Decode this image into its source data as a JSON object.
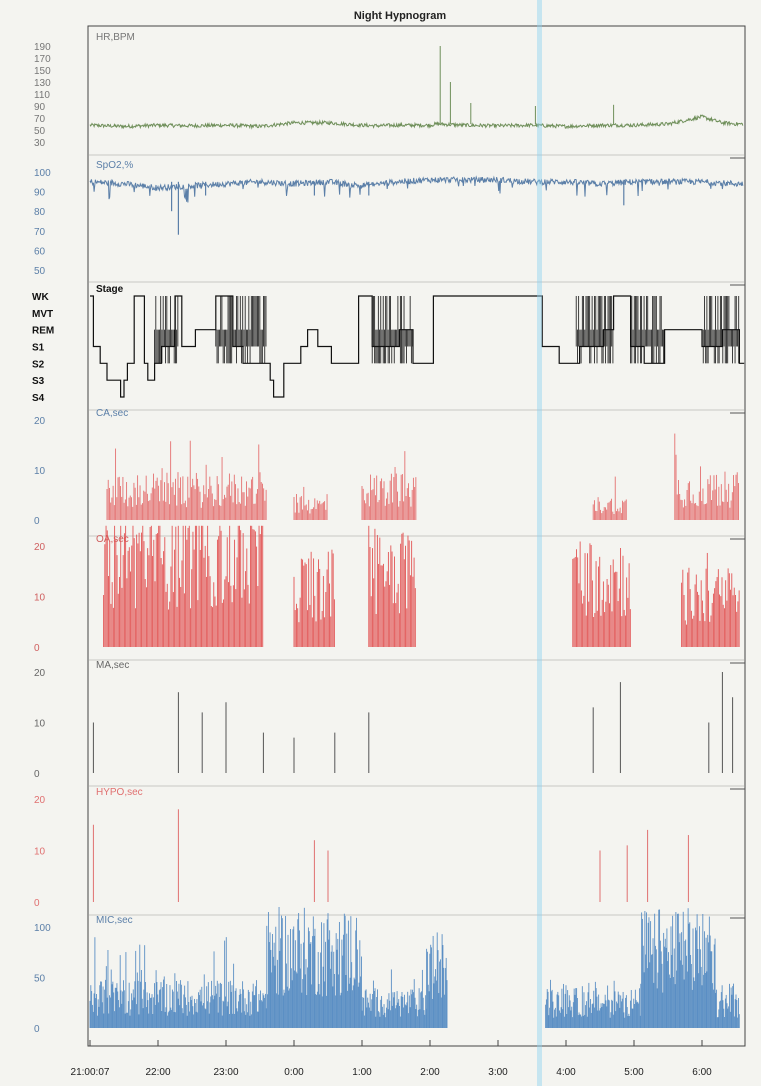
{
  "chart_data": {
    "type": "line",
    "title": "Night Hypnogram",
    "x_tick_labels": [
      "21:00:07",
      "22:00",
      "23:00",
      "0:00",
      "1:00",
      "2:00",
      "3:00",
      "4:00",
      "5:00",
      "6:00"
    ],
    "x_range": [
      "21:00:07",
      "06:35"
    ],
    "grid": false,
    "panels": [
      {
        "name": "HR,BPM",
        "kind": "line",
        "color": "#6f8f5a",
        "label_color": "#777777",
        "ylim": [
          30,
          190
        ],
        "yticks": [
          "190",
          "170",
          "150",
          "130",
          "110",
          "90",
          "70",
          "50",
          "30"
        ],
        "x": [
          0,
          0.5,
          1,
          1.5,
          2,
          2.5,
          3,
          3.5,
          4,
          4.2,
          4.5,
          5,
          5.1,
          5.5,
          6,
          6.5,
          7,
          7.5,
          8,
          8.5,
          9,
          9.3,
          9.5
        ],
        "values": [
          58,
          56,
          58,
          57,
          58,
          56,
          62,
          62,
          58,
          57,
          58,
          58,
          60,
          58,
          57,
          58,
          56,
          58,
          58,
          60,
          72,
          62,
          60
        ],
        "spikes": [
          {
            "x": 5.15,
            "value": 190
          },
          {
            "x": 5.3,
            "value": 130
          },
          {
            "x": 5.6,
            "value": 95
          },
          {
            "x": 6.55,
            "value": 90
          },
          {
            "x": 7.7,
            "value": 92
          }
        ]
      },
      {
        "name": "SpO2,%",
        "kind": "line",
        "color": "#5b7fa8",
        "label_color": "#5b7fa8",
        "ylim": [
          50,
          100
        ],
        "yticks": [
          "100",
          "90",
          "80",
          "70",
          "60",
          "50"
        ],
        "x": [
          0,
          0.5,
          1,
          1.5,
          2,
          2.5,
          3,
          3.5,
          4,
          4.5,
          5,
          5.5,
          6,
          6.5,
          7,
          7.5,
          8,
          8.5,
          9,
          9.5
        ],
        "values": [
          95,
          94,
          92,
          93,
          94,
          95,
          94,
          95,
          93,
          95,
          96,
          96,
          96,
          95,
          95,
          94,
          95,
          95,
          95,
          94
        ],
        "dips": [
          {
            "x": 1.3,
            "value": 68
          },
          {
            "x": 1.2,
            "value": 80
          },
          {
            "x": 1.7,
            "value": 88
          },
          {
            "x": 3.3,
            "value": 88
          },
          {
            "x": 4.1,
            "value": 88
          },
          {
            "x": 7.85,
            "value": 83
          }
        ]
      },
      {
        "name": "Stage",
        "kind": "step",
        "color": "#111111",
        "label_color": "#111111",
        "levels": [
          "WK",
          "MVT",
          "REM",
          "S1",
          "S2",
          "S3",
          "S4"
        ],
        "x": [
          0,
          0.05,
          0.15,
          0.25,
          0.45,
          0.5,
          0.55,
          0.65,
          0.8,
          0.85,
          0.95,
          1.05,
          1.25,
          1.35,
          1.55,
          1.85,
          2.1,
          2.25,
          2.65,
          2.7,
          2.85,
          3.1,
          3.2,
          3.35,
          3.55,
          3.95,
          4.15,
          4.55,
          4.75,
          5.05,
          5.7,
          6.0,
          6.3,
          6.65,
          6.9,
          7.2,
          7.55,
          7.7,
          7.95,
          8.15,
          8.45,
          8.75,
          9.0,
          9.3,
          9.55
        ],
        "values": [
          0,
          3,
          4,
          5,
          6,
          5,
          4,
          0,
          4,
          5,
          4,
          3,
          0,
          3,
          2,
          0,
          3,
          4,
          5,
          6,
          4,
          3,
          2,
          3,
          4,
          0,
          3,
          2,
          4,
          0,
          0,
          0,
          0,
          3,
          4,
          3,
          2,
          0,
          3,
          4,
          2,
          2,
          3,
          2,
          4
        ]
      },
      {
        "name": "CA,sec",
        "kind": "bar",
        "color": "#e47070",
        "label_color": "#5b7fa8",
        "ylim": [
          0,
          20
        ],
        "yticks": [
          "20",
          "10",
          "0"
        ],
        "bursts": [
          {
            "x0": 0.25,
            "x1": 2.6,
            "typical": 6,
            "max": 16
          },
          {
            "x0": 3.0,
            "x1": 3.5,
            "typical": 3,
            "max": 10
          },
          {
            "x0": 4.0,
            "x1": 4.8,
            "typical": 6,
            "max": 14
          },
          {
            "x0": 7.4,
            "x1": 7.9,
            "typical": 3,
            "max": 12
          },
          {
            "x0": 8.6,
            "x1": 9.55,
            "typical": 6,
            "max": 20
          }
        ]
      },
      {
        "name": "OA,sec",
        "kind": "bar",
        "color": "#e25555",
        "label_color": "#d06060",
        "ylim": [
          0,
          20
        ],
        "yticks": [
          "20",
          "10",
          "0"
        ],
        "bursts": [
          {
            "x0": 0.2,
            "x1": 2.55,
            "typical": 18,
            "max": 25
          },
          {
            "x0": 3.0,
            "x1": 3.6,
            "typical": 12,
            "max": 20
          },
          {
            "x0": 4.1,
            "x1": 4.8,
            "typical": 16,
            "max": 25
          },
          {
            "x0": 7.1,
            "x1": 7.95,
            "typical": 14,
            "max": 22
          },
          {
            "x0": 8.7,
            "x1": 9.55,
            "typical": 10,
            "max": 20
          }
        ]
      },
      {
        "name": "MA,sec",
        "kind": "bar",
        "color": "#555555",
        "label_color": "#666666",
        "ylim": [
          0,
          20
        ],
        "yticks": [
          "20",
          "10",
          "0"
        ],
        "events": [
          {
            "x": 0.05,
            "value": 10
          },
          {
            "x": 1.3,
            "value": 16
          },
          {
            "x": 1.65,
            "value": 12
          },
          {
            "x": 2.0,
            "value": 14
          },
          {
            "x": 2.55,
            "value": 8
          },
          {
            "x": 3.0,
            "value": 7
          },
          {
            "x": 3.6,
            "value": 8
          },
          {
            "x": 4.1,
            "value": 12
          },
          {
            "x": 7.4,
            "value": 13
          },
          {
            "x": 7.8,
            "value": 18
          },
          {
            "x": 9.1,
            "value": 10
          },
          {
            "x": 9.3,
            "value": 20
          },
          {
            "x": 9.45,
            "value": 15
          }
        ]
      },
      {
        "name": "HYPO,sec",
        "kind": "bar",
        "color": "#e07070",
        "label_color": "#e07070",
        "ylim": [
          0,
          20
        ],
        "yticks": [
          "20",
          "10",
          "0"
        ],
        "events": [
          {
            "x": 0.05,
            "value": 15
          },
          {
            "x": 1.3,
            "value": 18
          },
          {
            "x": 3.3,
            "value": 12
          },
          {
            "x": 3.5,
            "value": 10
          },
          {
            "x": 7.5,
            "value": 10
          },
          {
            "x": 7.9,
            "value": 11
          },
          {
            "x": 8.2,
            "value": 14
          },
          {
            "x": 8.8,
            "value": 13
          }
        ]
      },
      {
        "name": "MIC,sec",
        "kind": "bar",
        "color": "#5b8fc4",
        "label_color": "#5b7fa8",
        "ylim": [
          0,
          100
        ],
        "yticks": [
          "100",
          "50",
          "0"
        ],
        "bursts": [
          {
            "x0": 0.0,
            "x1": 2.6,
            "typical": 30,
            "max": 90
          },
          {
            "x0": 2.6,
            "x1": 4.0,
            "typical": 75,
            "max": 95
          },
          {
            "x0": 4.0,
            "x1": 4.95,
            "typical": 25,
            "max": 60
          },
          {
            "x0": 4.95,
            "x1": 5.25,
            "typical": 60,
            "max": 85
          },
          {
            "x0": 6.7,
            "x1": 8.1,
            "typical": 25,
            "max": 50
          },
          {
            "x0": 8.1,
            "x1": 9.2,
            "typical": 75,
            "max": 90
          },
          {
            "x0": 9.2,
            "x1": 9.55,
            "typical": 25,
            "max": 45
          }
        ]
      }
    ]
  },
  "colors": {
    "background": "#f4f4f0",
    "frame": "#444444",
    "scan_line": "#8fd3f0"
  }
}
